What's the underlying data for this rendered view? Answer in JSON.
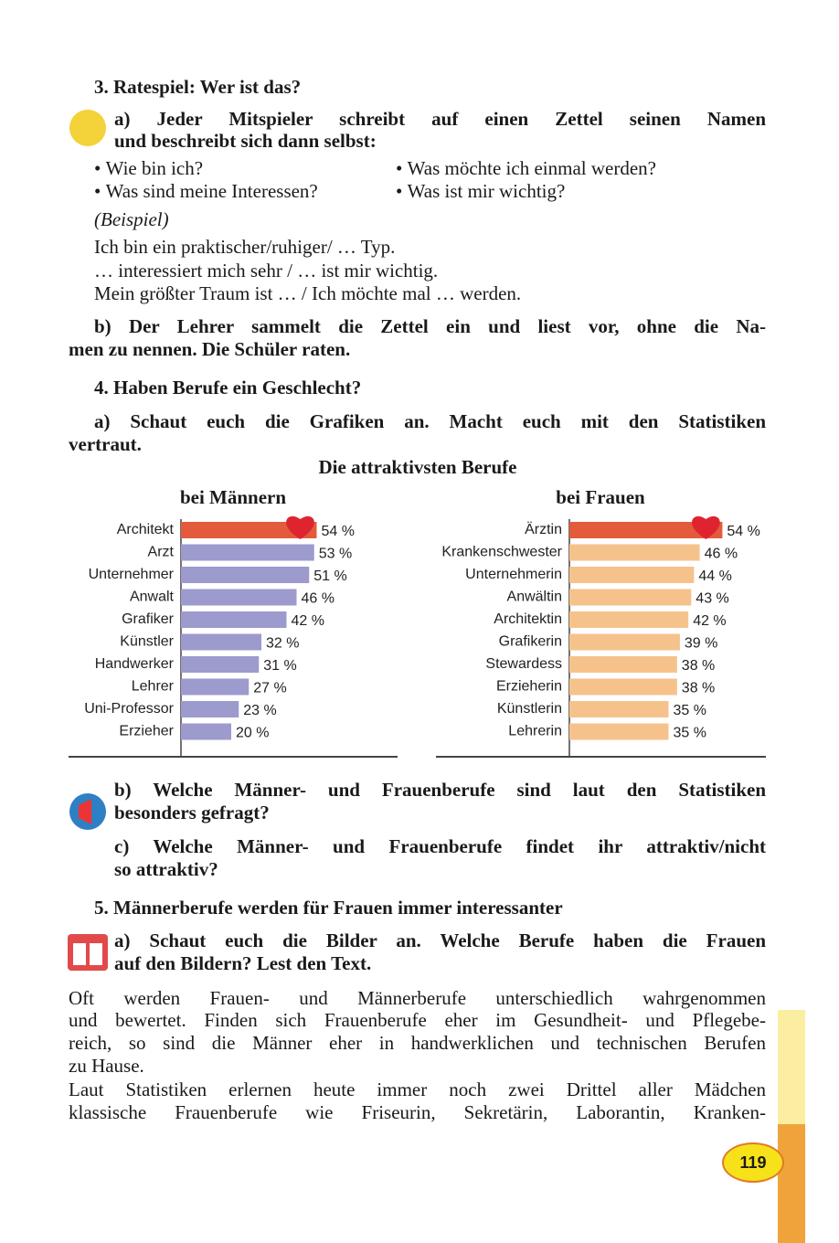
{
  "ex3": {
    "title": "3. Ratespiel: Wer ist das?",
    "a": [
      "a) Jeder Mitspieler schreibt auf einen Zettel seinen Namen",
      "und beschreibt sich dann selbst:"
    ],
    "bullets": [
      "Wie bin ich?",
      "Was möchte ich einmal werden?",
      "Was sind meine Interessen?",
      "Was ist mir wichtig?"
    ],
    "example_label": "(Beispiel)",
    "example_lines": [
      "Ich bin ein praktischer/ruhiger/ … Typ.",
      "… interessiert mich sehr / … ist mir wichtig.",
      "Mein größter Traum ist … / Ich möchte mal … werden."
    ],
    "b": [
      "b) Der Lehrer sammelt die Zettel ein und liest vor, ohne die Na-",
      "men zu nennen. Die Schüler raten."
    ]
  },
  "ex4": {
    "title": "4. Haben Berufe ein Geschlecht?",
    "a": [
      "a) Schaut euch die Grafiken an. Macht euch mit den Statistiken",
      "vertraut."
    ],
    "chart_heading": "Die attraktivsten Berufe",
    "b": [
      "b) Welche Männer- und Frauenberufe sind laut den Statistiken",
      "besonders gefragt?"
    ],
    "c": [
      "c) Welche Männer- und Frauenberufe findet ihr attraktiv/nicht",
      "so attraktiv?"
    ]
  },
  "chart_data": [
    {
      "type": "bar",
      "orientation": "horizontal",
      "title": "bei Männern",
      "categories": [
        "Architekt",
        "Arzt",
        "Unternehmer",
        "Anwalt",
        "Grafiker",
        "Künstler",
        "Handwerker",
        "Lehrer",
        "Uni-Professor",
        "Erzieher"
      ],
      "values": [
        54,
        53,
        51,
        46,
        42,
        32,
        31,
        27,
        23,
        20
      ],
      "value_labels": [
        "54 %",
        "53 %",
        "51 %",
        "46 %",
        "42 %",
        "32 %",
        "31 %",
        "27 %",
        "23 %",
        "20 %"
      ],
      "colors": [
        "#e35b3b",
        "#9d9acd",
        "#9d9acd",
        "#9d9acd",
        "#9d9acd",
        "#9d9acd",
        "#9d9acd",
        "#9d9acd",
        "#9d9acd",
        "#9d9acd"
      ]
    },
    {
      "type": "bar",
      "orientation": "horizontal",
      "title": "bei Frauen",
      "categories": [
        "Ärztin",
        "Krankenschwester",
        "Unternehmerin",
        "Anwältin",
        "Architektin",
        "Grafikerin",
        "Stewardess",
        "Erzieherin",
        "Künstlerin",
        "Lehrerin"
      ],
      "values": [
        54,
        46,
        44,
        43,
        42,
        39,
        38,
        38,
        35,
        35
      ],
      "value_labels": [
        "54 %",
        "46 %",
        "44 %",
        "43 %",
        "42 %",
        "39 %",
        "38 %",
        "38 %",
        "35 %",
        "35 %"
      ],
      "colors": [
        "#e35b3b",
        "#f6c28c",
        "#f6c28c",
        "#f6c28c",
        "#f6c28c",
        "#f6c28c",
        "#f6c28c",
        "#f6c28c",
        "#f6c28c",
        "#f6c28c"
      ]
    }
  ],
  "ex5": {
    "title": "5. Männerberufe werden für Frauen immer interessanter",
    "a": [
      "a) Schaut euch die Bilder an. Welche Berufe haben die Frauen",
      "auf den Bildern? Lest den Text."
    ],
    "text": [
      [
        "Oft werden Frauen- und Männerberufe unterschiedlich wahrgenommen",
        "und bewertet. Finden sich Frauenberufe eher im Gesundheit- und Pflegebe-",
        "reich, so sind die Männer eher in handwerklichen und technischen Berufen",
        "zu Hause."
      ],
      [
        "Laut Statistiken erlernen heute immer noch zwei Drittel aller Mädchen",
        "klassische Frauenberufe wie Friseurin, Sekretärin, Laborantin, Kranken-"
      ]
    ]
  },
  "page_number": "119"
}
